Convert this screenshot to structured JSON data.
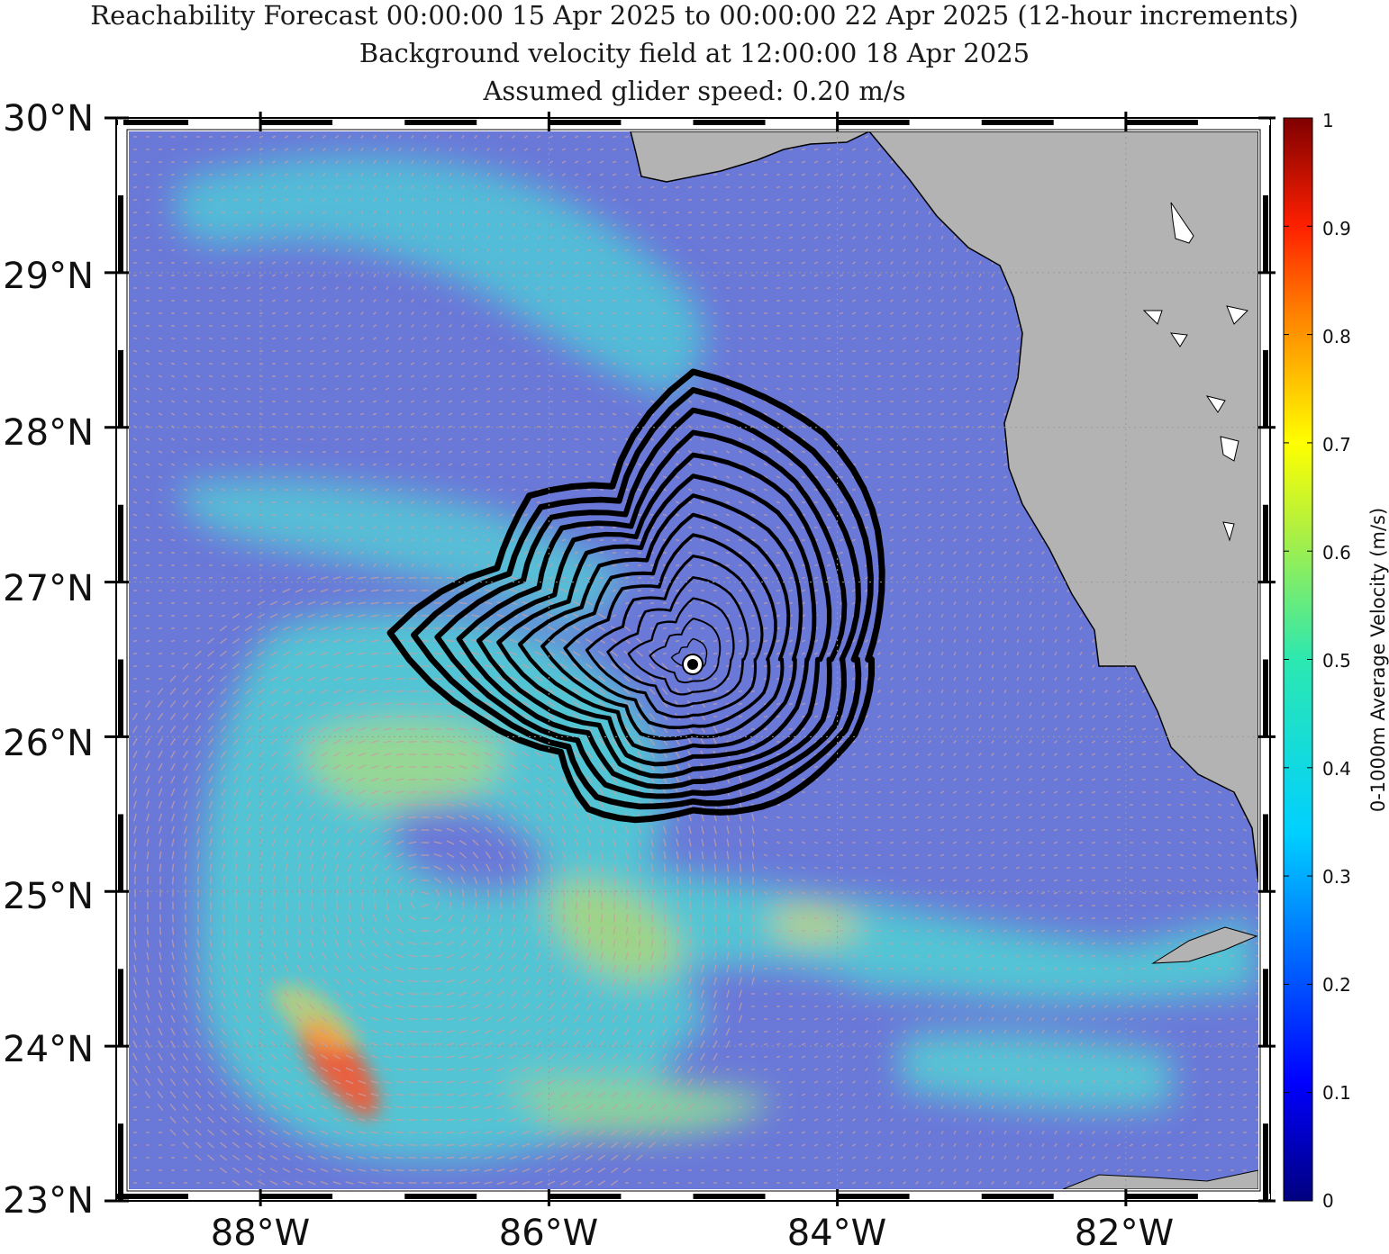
{
  "title": {
    "line1": "Reachability Forecast 00:00:00 15 Apr 2025 to 00:00:00 22 Apr 2025 (12-hour increments)",
    "line2": "Background velocity field at 12:00:00 18 Apr 2025",
    "line3": "Assumed glider speed: 0.20 m/s"
  },
  "axes": {
    "lat_labels": [
      "30°N",
      "29°N",
      "28°N",
      "27°N",
      "26°N",
      "25°N",
      "24°N",
      "23°N"
    ],
    "lon_labels": [
      "88°W",
      "86°W",
      "84°W",
      "82°W"
    ],
    "lat_range": [
      23,
      30
    ],
    "lon_range": [
      -89,
      -81
    ]
  },
  "colorbar": {
    "label": "0-1000m Average Velocity (m/s)",
    "ticks": [
      "1",
      "0.9",
      "0.8",
      "0.7",
      "0.6",
      "0.5",
      "0.4",
      "0.3",
      "0.2",
      "0.1",
      "0"
    ],
    "range": [
      0,
      1
    ],
    "colormap": "jet"
  },
  "chart_data": {
    "type": "map",
    "start_point": {
      "lon": -85.0,
      "lat": 26.5
    },
    "reachability_contours_count": 14,
    "increment_hours": 12,
    "colors": {
      "ocean_background": "#6a78d8",
      "land": "#b3b3b3",
      "coastline": "#000000",
      "contours": "#000000",
      "arrows": "#c8a0a0"
    }
  }
}
